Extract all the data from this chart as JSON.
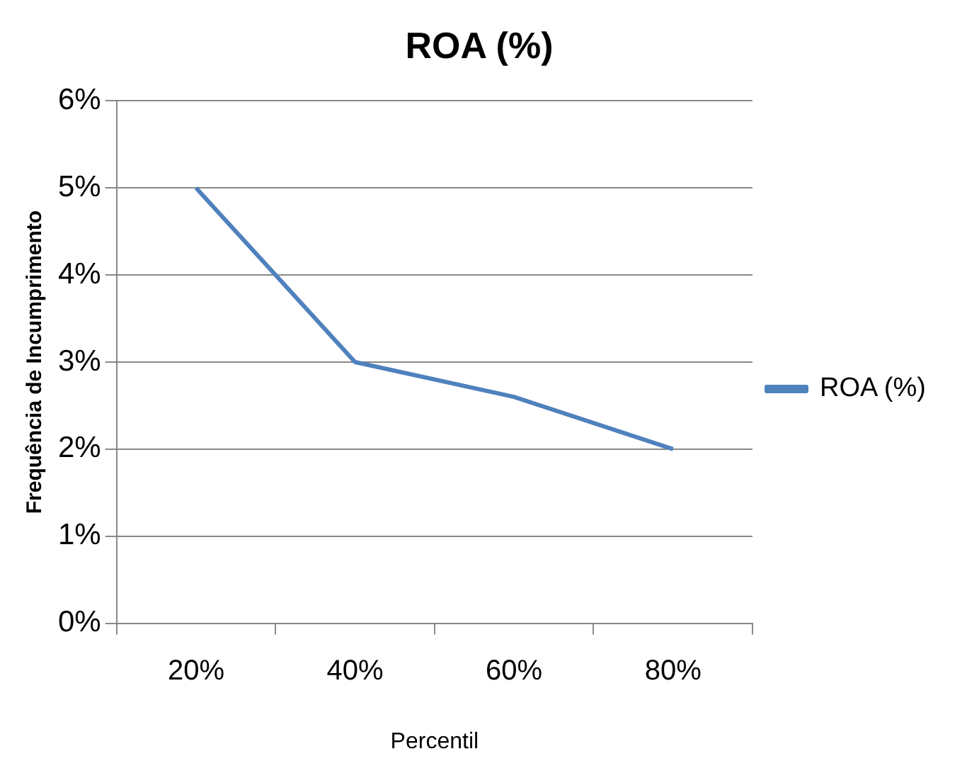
{
  "chart_data": {
    "type": "line",
    "title": "ROA (%)",
    "xlabel": "Percentil",
    "ylabel": "Frequência de Incumprimento",
    "categories": [
      "20%",
      "40%",
      "60%",
      "80%"
    ],
    "series": [
      {
        "name": "ROA (%)",
        "color": "#4f81bd",
        "values": [
          5,
          3,
          2.6,
          2
        ]
      }
    ],
    "ylim": [
      0,
      6
    ],
    "yticks": [
      {
        "value": 0,
        "label": "0%"
      },
      {
        "value": 1,
        "label": "1%"
      },
      {
        "value": 2,
        "label": "2%"
      },
      {
        "value": 3,
        "label": "3%"
      },
      {
        "value": 4,
        "label": "4%"
      },
      {
        "value": 5,
        "label": "5%"
      },
      {
        "value": 6,
        "label": "6%"
      }
    ],
    "grid": "y",
    "legend": "right",
    "marker": "none",
    "line_style": "solid"
  }
}
